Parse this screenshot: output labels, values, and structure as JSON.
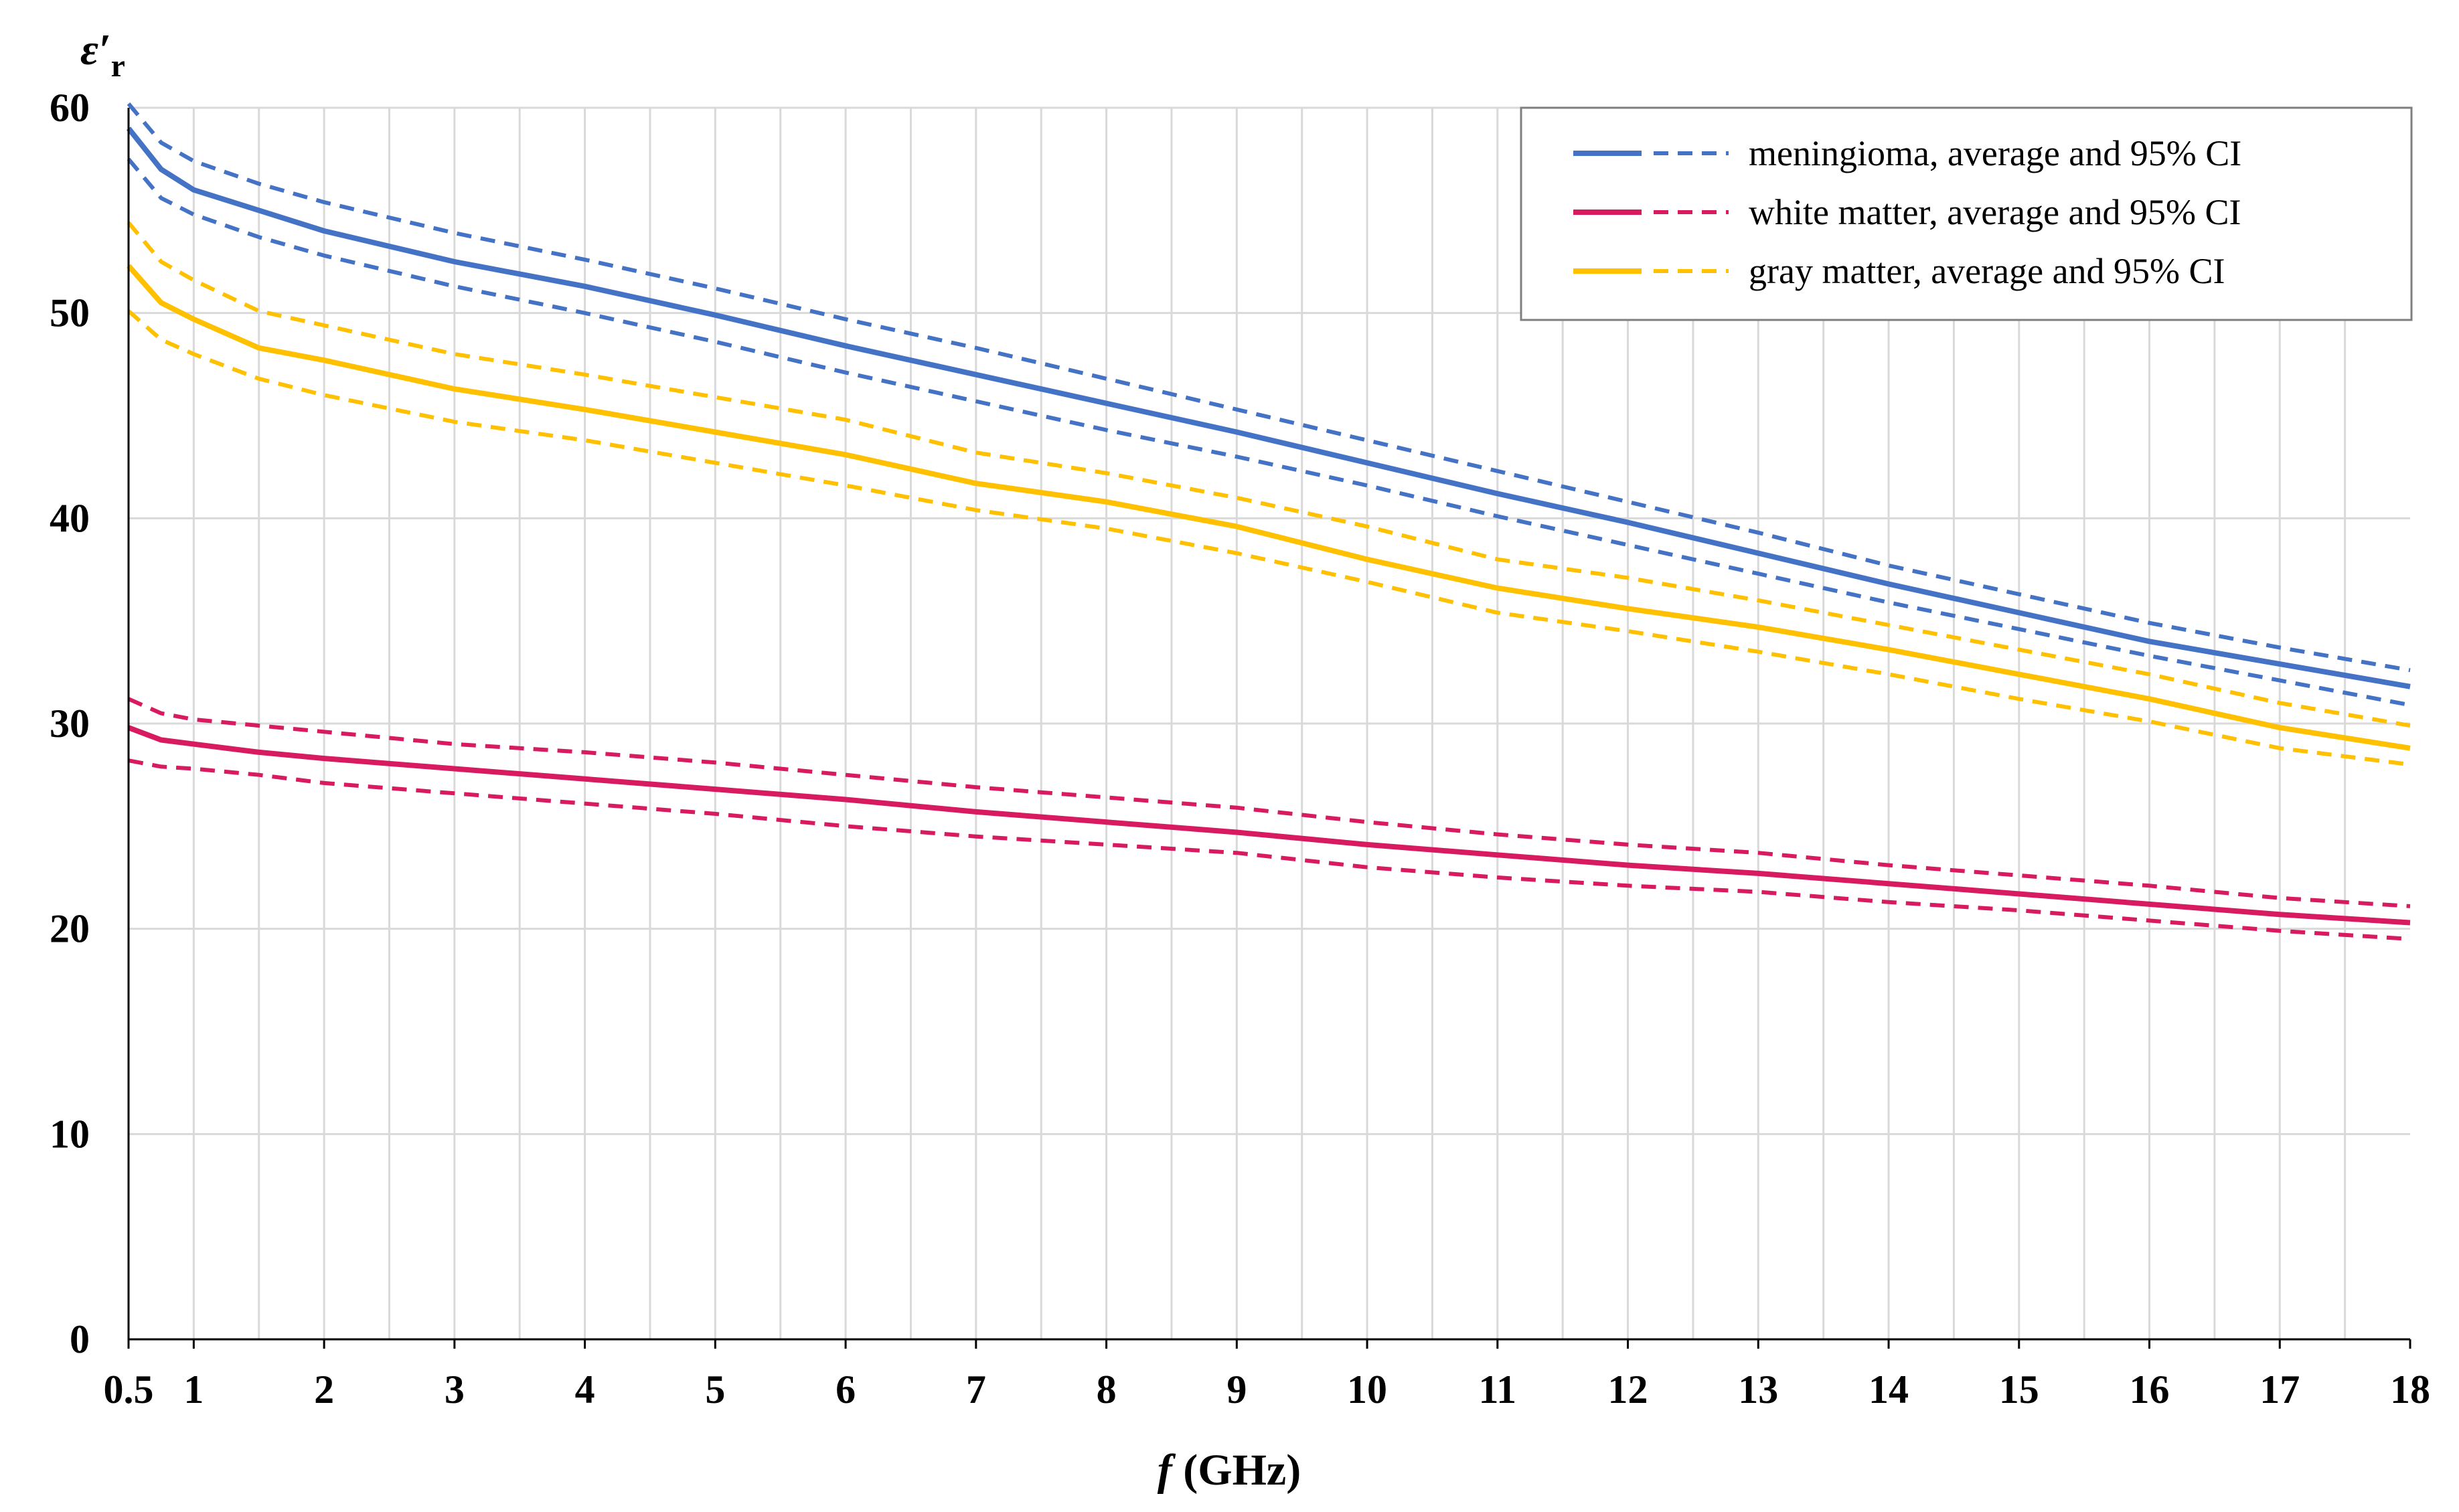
{
  "chart_data": {
    "type": "line",
    "title": "",
    "ylabel_symbol": "ε′",
    "ylabel_subscript": "r",
    "xlabel_symbol": "f",
    "xlabel_unit": " (GHz)",
    "xlim": [
      0.5,
      18
    ],
    "ylim": [
      0,
      60
    ],
    "x_ticks": [
      0.5,
      1,
      2,
      3,
      4,
      5,
      6,
      7,
      8,
      9,
      10,
      11,
      12,
      13,
      14,
      15,
      16,
      17,
      18
    ],
    "x_tick_labels": [
      "0.5",
      "1",
      "2",
      "3",
      "4",
      "5",
      "6",
      "7",
      "8",
      "9",
      "10",
      "11",
      "12",
      "13",
      "14",
      "15",
      "16",
      "17",
      "18"
    ],
    "y_ticks": [
      0,
      10,
      20,
      30,
      40,
      50,
      60
    ],
    "y_tick_labels": [
      "0",
      "10",
      "20",
      "30",
      "40",
      "50",
      "60"
    ],
    "grid": "vertical lines every 0.5 GHz, horizontal lines every 10",
    "legend": {
      "placement": "top-right",
      "entries": [
        "meningioma, average and 95% CI",
        "white matter, average and 95% CI",
        "gray matter, average and 95% CI"
      ]
    },
    "colors": {
      "meningioma": "#4472C4",
      "white_matter": "#D81B60",
      "gray_matter": "#FFC000"
    },
    "x": [
      0.5,
      0.75,
      1,
      1.5,
      2,
      3,
      4,
      5,
      6,
      7,
      8,
      9,
      10,
      11,
      12,
      13,
      14,
      15,
      16,
      17,
      18
    ],
    "series": [
      {
        "name": "meningioma average",
        "group": "meningioma",
        "style": "solid",
        "values": [
          59.0,
          57.0,
          56.0,
          55.0,
          54.0,
          52.5,
          51.3,
          49.9,
          48.4,
          47.0,
          45.6,
          44.2,
          42.7,
          41.2,
          39.8,
          38.3,
          36.8,
          35.4,
          34.0,
          32.9,
          31.8
        ]
      },
      {
        "name": "meningioma upper 95% CI",
        "group": "meningioma",
        "style": "dashed",
        "values": [
          60.2,
          58.3,
          57.4,
          56.3,
          55.4,
          53.9,
          52.6,
          51.2,
          49.7,
          48.3,
          46.8,
          45.3,
          43.8,
          42.3,
          40.8,
          39.3,
          37.7,
          36.3,
          34.9,
          33.7,
          32.6
        ]
      },
      {
        "name": "meningioma lower 95% CI",
        "group": "meningioma",
        "style": "dashed",
        "values": [
          57.5,
          55.6,
          54.8,
          53.7,
          52.8,
          51.3,
          50.0,
          48.6,
          47.1,
          45.7,
          44.3,
          43.0,
          41.6,
          40.1,
          38.7,
          37.3,
          35.9,
          34.6,
          33.3,
          32.1,
          30.9
        ]
      },
      {
        "name": "white matter average",
        "group": "white_matter",
        "style": "solid",
        "values": [
          29.8,
          29.2,
          29.0,
          28.6,
          28.3,
          27.8,
          27.3,
          26.8,
          26.3,
          25.7,
          25.2,
          24.7,
          24.1,
          23.6,
          23.1,
          22.7,
          22.2,
          21.7,
          21.2,
          20.7,
          20.3
        ]
      },
      {
        "name": "white matter upper 95% CI",
        "group": "white_matter",
        "style": "dashed",
        "values": [
          31.2,
          30.5,
          30.2,
          29.9,
          29.6,
          29.0,
          28.6,
          28.1,
          27.5,
          26.9,
          26.4,
          25.9,
          25.2,
          24.6,
          24.1,
          23.7,
          23.1,
          22.6,
          22.1,
          21.5,
          21.1
        ]
      },
      {
        "name": "white matter lower 95% CI",
        "group": "white_matter",
        "style": "dashed",
        "values": [
          28.2,
          27.9,
          27.8,
          27.5,
          27.1,
          26.6,
          26.1,
          25.6,
          25.0,
          24.5,
          24.1,
          23.7,
          23.0,
          22.5,
          22.1,
          21.8,
          21.3,
          20.9,
          20.4,
          19.9,
          19.5
        ]
      },
      {
        "name": "gray matter average",
        "group": "gray_matter",
        "style": "solid",
        "values": [
          52.3,
          50.5,
          49.7,
          48.3,
          47.7,
          46.3,
          45.3,
          44.2,
          43.1,
          41.7,
          40.8,
          39.6,
          38.0,
          36.6,
          35.6,
          34.7,
          33.6,
          32.4,
          31.2,
          29.8,
          28.8
        ]
      },
      {
        "name": "gray matter upper 95% CI",
        "group": "gray_matter",
        "style": "dashed",
        "values": [
          54.4,
          52.5,
          51.6,
          50.1,
          49.4,
          48.0,
          47.0,
          45.9,
          44.8,
          43.2,
          42.2,
          41.0,
          39.6,
          38.0,
          37.1,
          36.0,
          34.8,
          33.6,
          32.4,
          31.0,
          29.9
        ]
      },
      {
        "name": "gray matter lower 95% CI",
        "group": "gray_matter",
        "style": "dashed",
        "values": [
          50.1,
          48.7,
          48.0,
          46.8,
          46.0,
          44.7,
          43.8,
          42.7,
          41.6,
          40.4,
          39.5,
          38.3,
          36.9,
          35.4,
          34.5,
          33.5,
          32.4,
          31.2,
          30.1,
          28.8,
          28.0
        ]
      }
    ]
  }
}
